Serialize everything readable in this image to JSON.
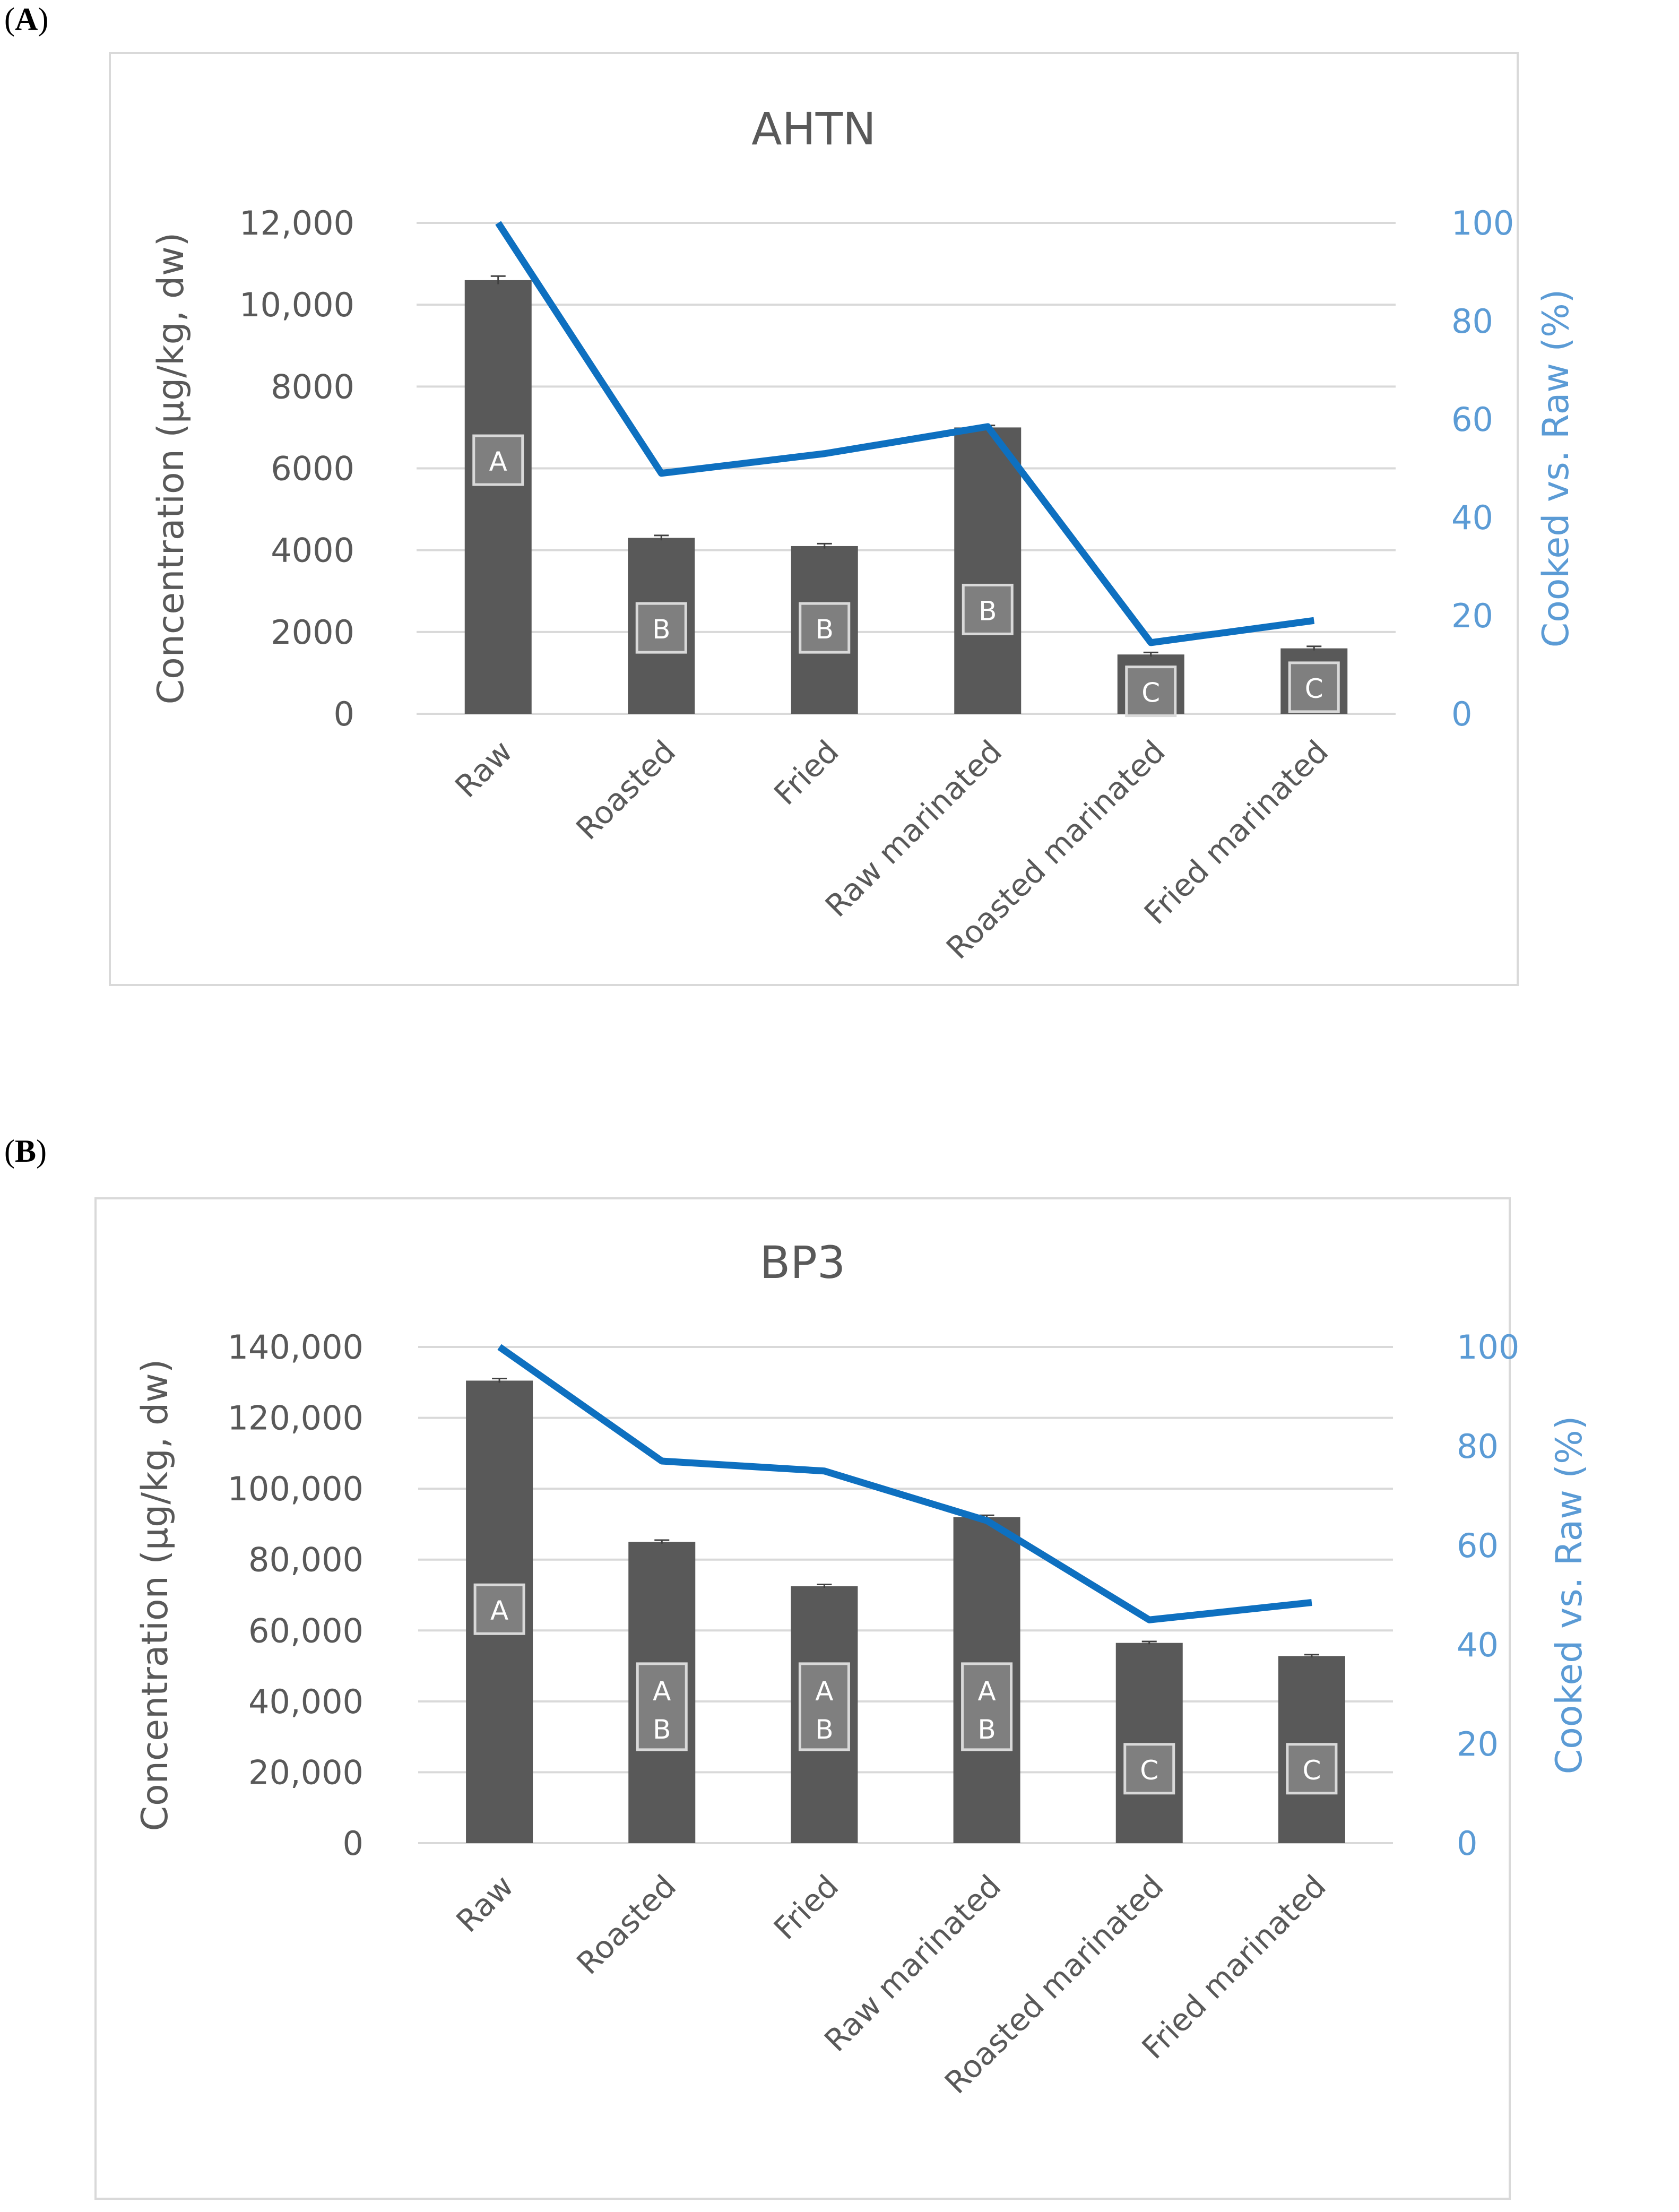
{
  "colors": {
    "bar": "#595959",
    "line": "#0e70c0",
    "right_axis": "#5b9bd5",
    "grid": "#d9d9d9",
    "text": "#595959",
    "badge_fill": "#7f7f7f",
    "badge_stroke": "#d9d9d9"
  },
  "chart_data": [
    {
      "panel_label": "A",
      "type": "bar",
      "title": "AHTN",
      "ylabel": "Concentration (μg/kg, dw)",
      "y2label": "Cooked vs. Raw (%)",
      "categories": [
        "Raw",
        "Roasted",
        "Fried",
        "Raw marinated",
        "Roasted marinated",
        "Fried marinated"
      ],
      "ylim": [
        0,
        12000
      ],
      "yticks": [
        0,
        2000,
        4000,
        6000,
        8000,
        10000,
        12000
      ],
      "ytick_labels": [
        "0",
        "2000",
        "4000",
        "6000",
        "8000",
        "10,000",
        "12,000"
      ],
      "y2lim": [
        0,
        100
      ],
      "y2ticks": [
        0,
        20,
        40,
        60,
        80,
        100
      ],
      "y2tick_labels": [
        "0",
        "20",
        "40",
        "60",
        "80",
        "100"
      ],
      "series": [
        {
          "name": "Concentration",
          "axis": "left",
          "type": "bar",
          "values": [
            10600,
            4300,
            4100,
            7000,
            1450,
            1600
          ],
          "errors": [
            100,
            60,
            60,
            50,
            50,
            50
          ]
        },
        {
          "name": "Cooked vs. Raw",
          "axis": "right",
          "type": "line",
          "values": [
            100,
            49,
            53,
            58.5,
            14.5,
            19
          ]
        }
      ],
      "group_labels": [
        [
          "A"
        ],
        [
          "B"
        ],
        [
          "B"
        ],
        [
          "B"
        ],
        [
          "C"
        ],
        [
          "C"
        ]
      ],
      "group_label_values": [
        6200,
        2100,
        2100,
        2550,
        550,
        650
      ]
    },
    {
      "panel_label": "B",
      "type": "bar",
      "title": "BP3",
      "ylabel": "Concentration (μg/kg, dw)",
      "y2label": "Cooked vs. Raw (%)",
      "categories": [
        "Raw",
        "Roasted",
        "Fried",
        "Raw marinated",
        "Roasted marinated",
        "Fried marinated"
      ],
      "ylim": [
        0,
        140000
      ],
      "yticks": [
        0,
        20000,
        40000,
        60000,
        80000,
        100000,
        120000,
        140000
      ],
      "ytick_labels": [
        "0",
        "20,000",
        "40,000",
        "60,000",
        "80,000",
        "100,000",
        "120,000",
        "140,000"
      ],
      "y2lim": [
        0,
        100
      ],
      "y2ticks": [
        0,
        20,
        40,
        60,
        80,
        100
      ],
      "y2tick_labels": [
        "0",
        "20",
        "40",
        "60",
        "80",
        "100"
      ],
      "series": [
        {
          "name": "Concentration",
          "axis": "left",
          "type": "bar",
          "values": [
            130500,
            85000,
            72500,
            92000,
            56500,
            52800
          ],
          "errors": [
            600,
            500,
            500,
            500,
            400,
            400
          ]
        },
        {
          "name": "Cooked vs. Raw",
          "axis": "right",
          "type": "line",
          "values": [
            100,
            77,
            75,
            65,
            45,
            48.5
          ]
        }
      ],
      "group_labels": [
        [
          "A"
        ],
        [
          "A",
          "B"
        ],
        [
          "A",
          "B"
        ],
        [
          "A",
          "B"
        ],
        [
          "C"
        ],
        [
          "C"
        ]
      ],
      "group_label_values": [
        66000,
        38500,
        38500,
        38500,
        21000,
        21000
      ]
    }
  ]
}
